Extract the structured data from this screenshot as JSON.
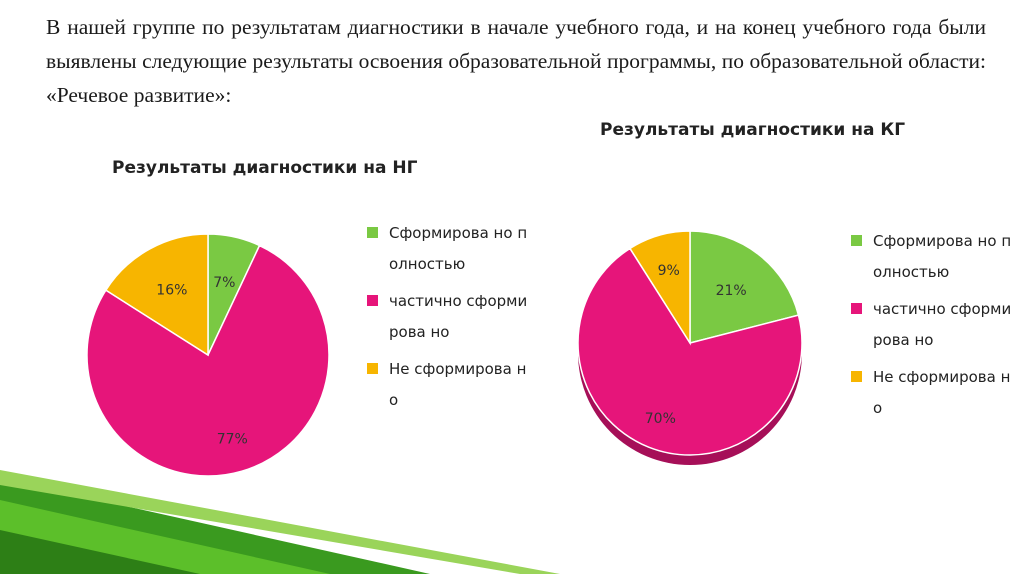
{
  "intro_text": "В нашей группе по результатам диагностики в начале учебного года, и на конец учебного года были выявлены следующие результаты освоения образовательной программы, по образовательной области: «Речевое развитие»:",
  "colors": {
    "green": "#7ac943",
    "magenta": "#e6157a",
    "orange": "#f7b500"
  },
  "chart_data": [
    {
      "type": "pie",
      "title": "Результаты диагностики на НГ",
      "legend_position": "right",
      "categories": [
        "Сформировано полностью",
        "частично сформировано",
        "Не сформировано"
      ],
      "legend_labels": [
        "Сформирова но полностью",
        "частично сформирова но",
        "Не сформирова но"
      ],
      "values": [
        7,
        77,
        16
      ],
      "labels": [
        "7%",
        "77%",
        "16%"
      ]
    },
    {
      "type": "pie",
      "title": "Результаты диагностики на КГ",
      "legend_position": "right",
      "categories": [
        "Сформировано полностью",
        "частично сформировано",
        "Не сформировано"
      ],
      "legend_labels": [
        "Сформирова но полностью",
        "частично сформирова но",
        "Не сформирова но"
      ],
      "values": [
        21,
        70,
        9
      ],
      "labels": [
        "21%",
        "70%",
        "9%"
      ]
    }
  ]
}
